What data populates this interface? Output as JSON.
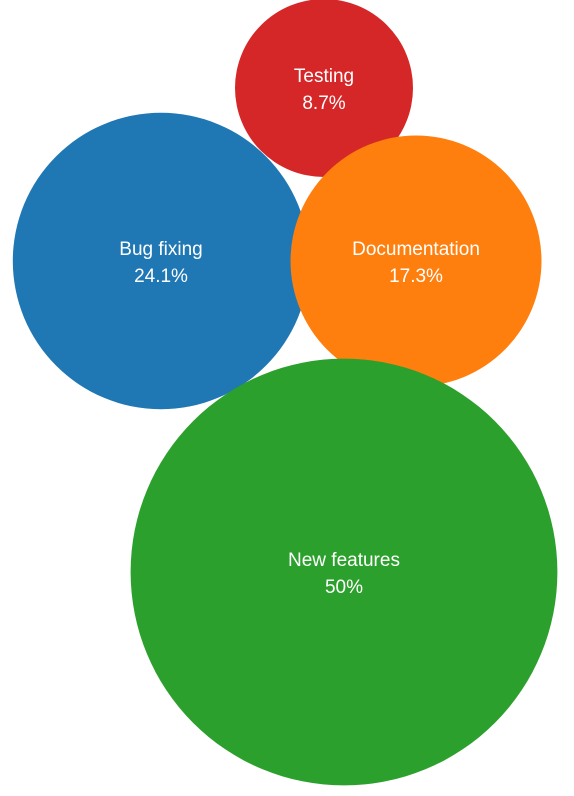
{
  "chart_data": {
    "type": "bubble",
    "title": "",
    "legend": "none",
    "series": [
      {
        "name": "Testing",
        "value": 8.7,
        "label": "8.7%",
        "color": "#d62728"
      },
      {
        "name": "Bug fixing",
        "value": 24.1,
        "label": "24.1%",
        "color": "#1f77b4"
      },
      {
        "name": "Documentation",
        "value": 17.3,
        "label": "17.3%",
        "color": "#ff7f0e"
      },
      {
        "name": "New features",
        "value": 50,
        "label": "50%",
        "color": "#2ca02c"
      }
    ]
  }
}
